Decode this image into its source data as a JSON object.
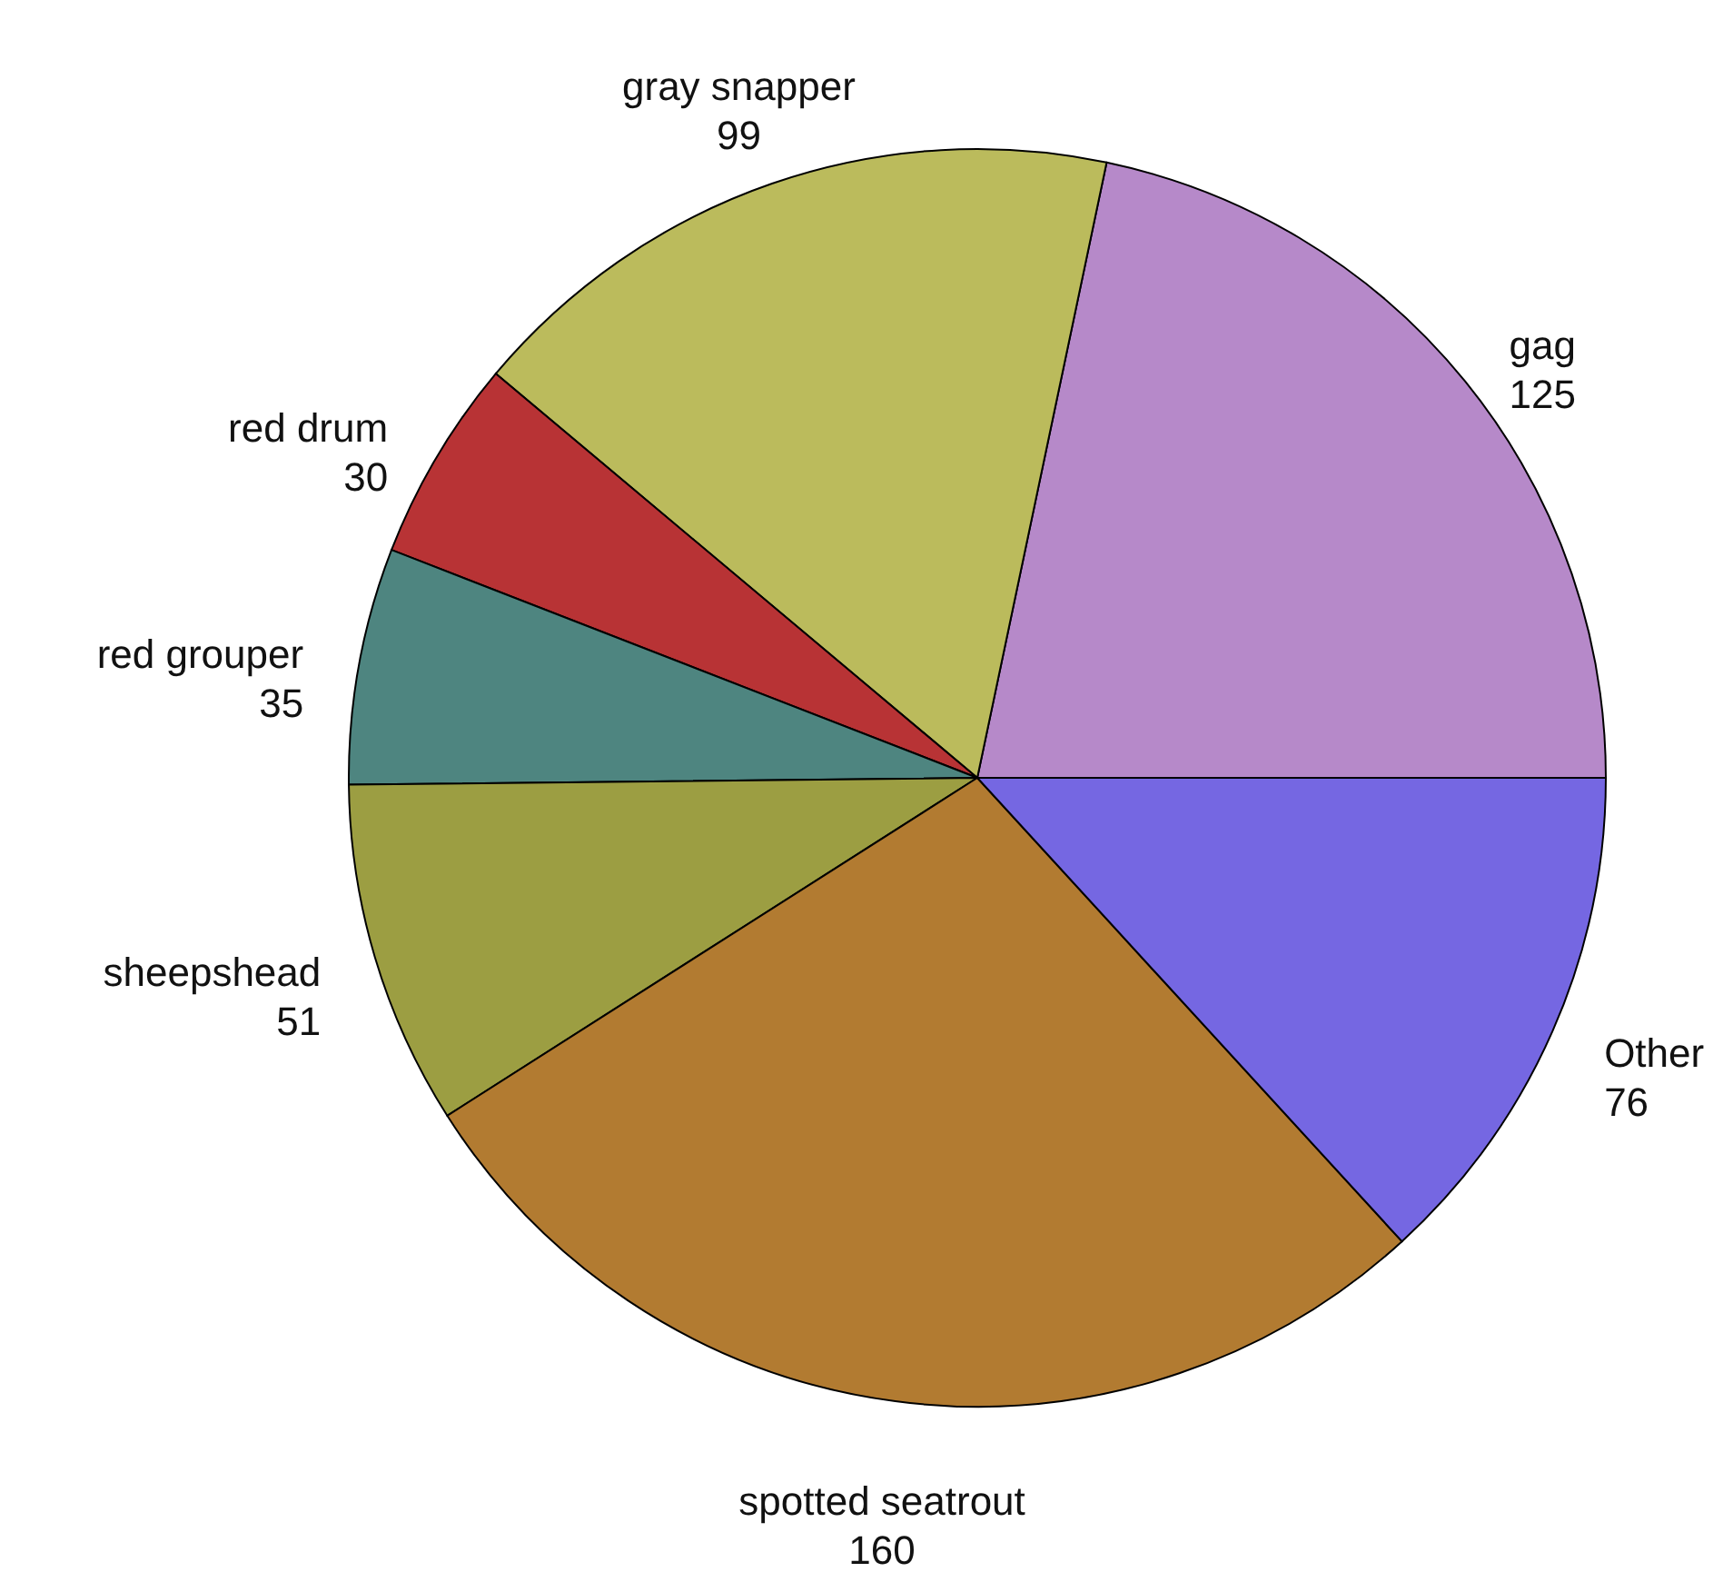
{
  "chart_data": {
    "type": "pie",
    "categories": [
      "gag",
      "gray snapper",
      "red drum",
      "red grouper",
      "sheepshead",
      "spotted seatrout",
      "Other"
    ],
    "values": [
      125,
      99,
      30,
      35,
      51,
      160,
      76
    ],
    "colors": [
      "#b689c9",
      "#bbbb5c",
      "#b83335",
      "#4e8580",
      "#9c9e42",
      "#b27b31",
      "#7567e2"
    ],
    "data_labels": true
  }
}
